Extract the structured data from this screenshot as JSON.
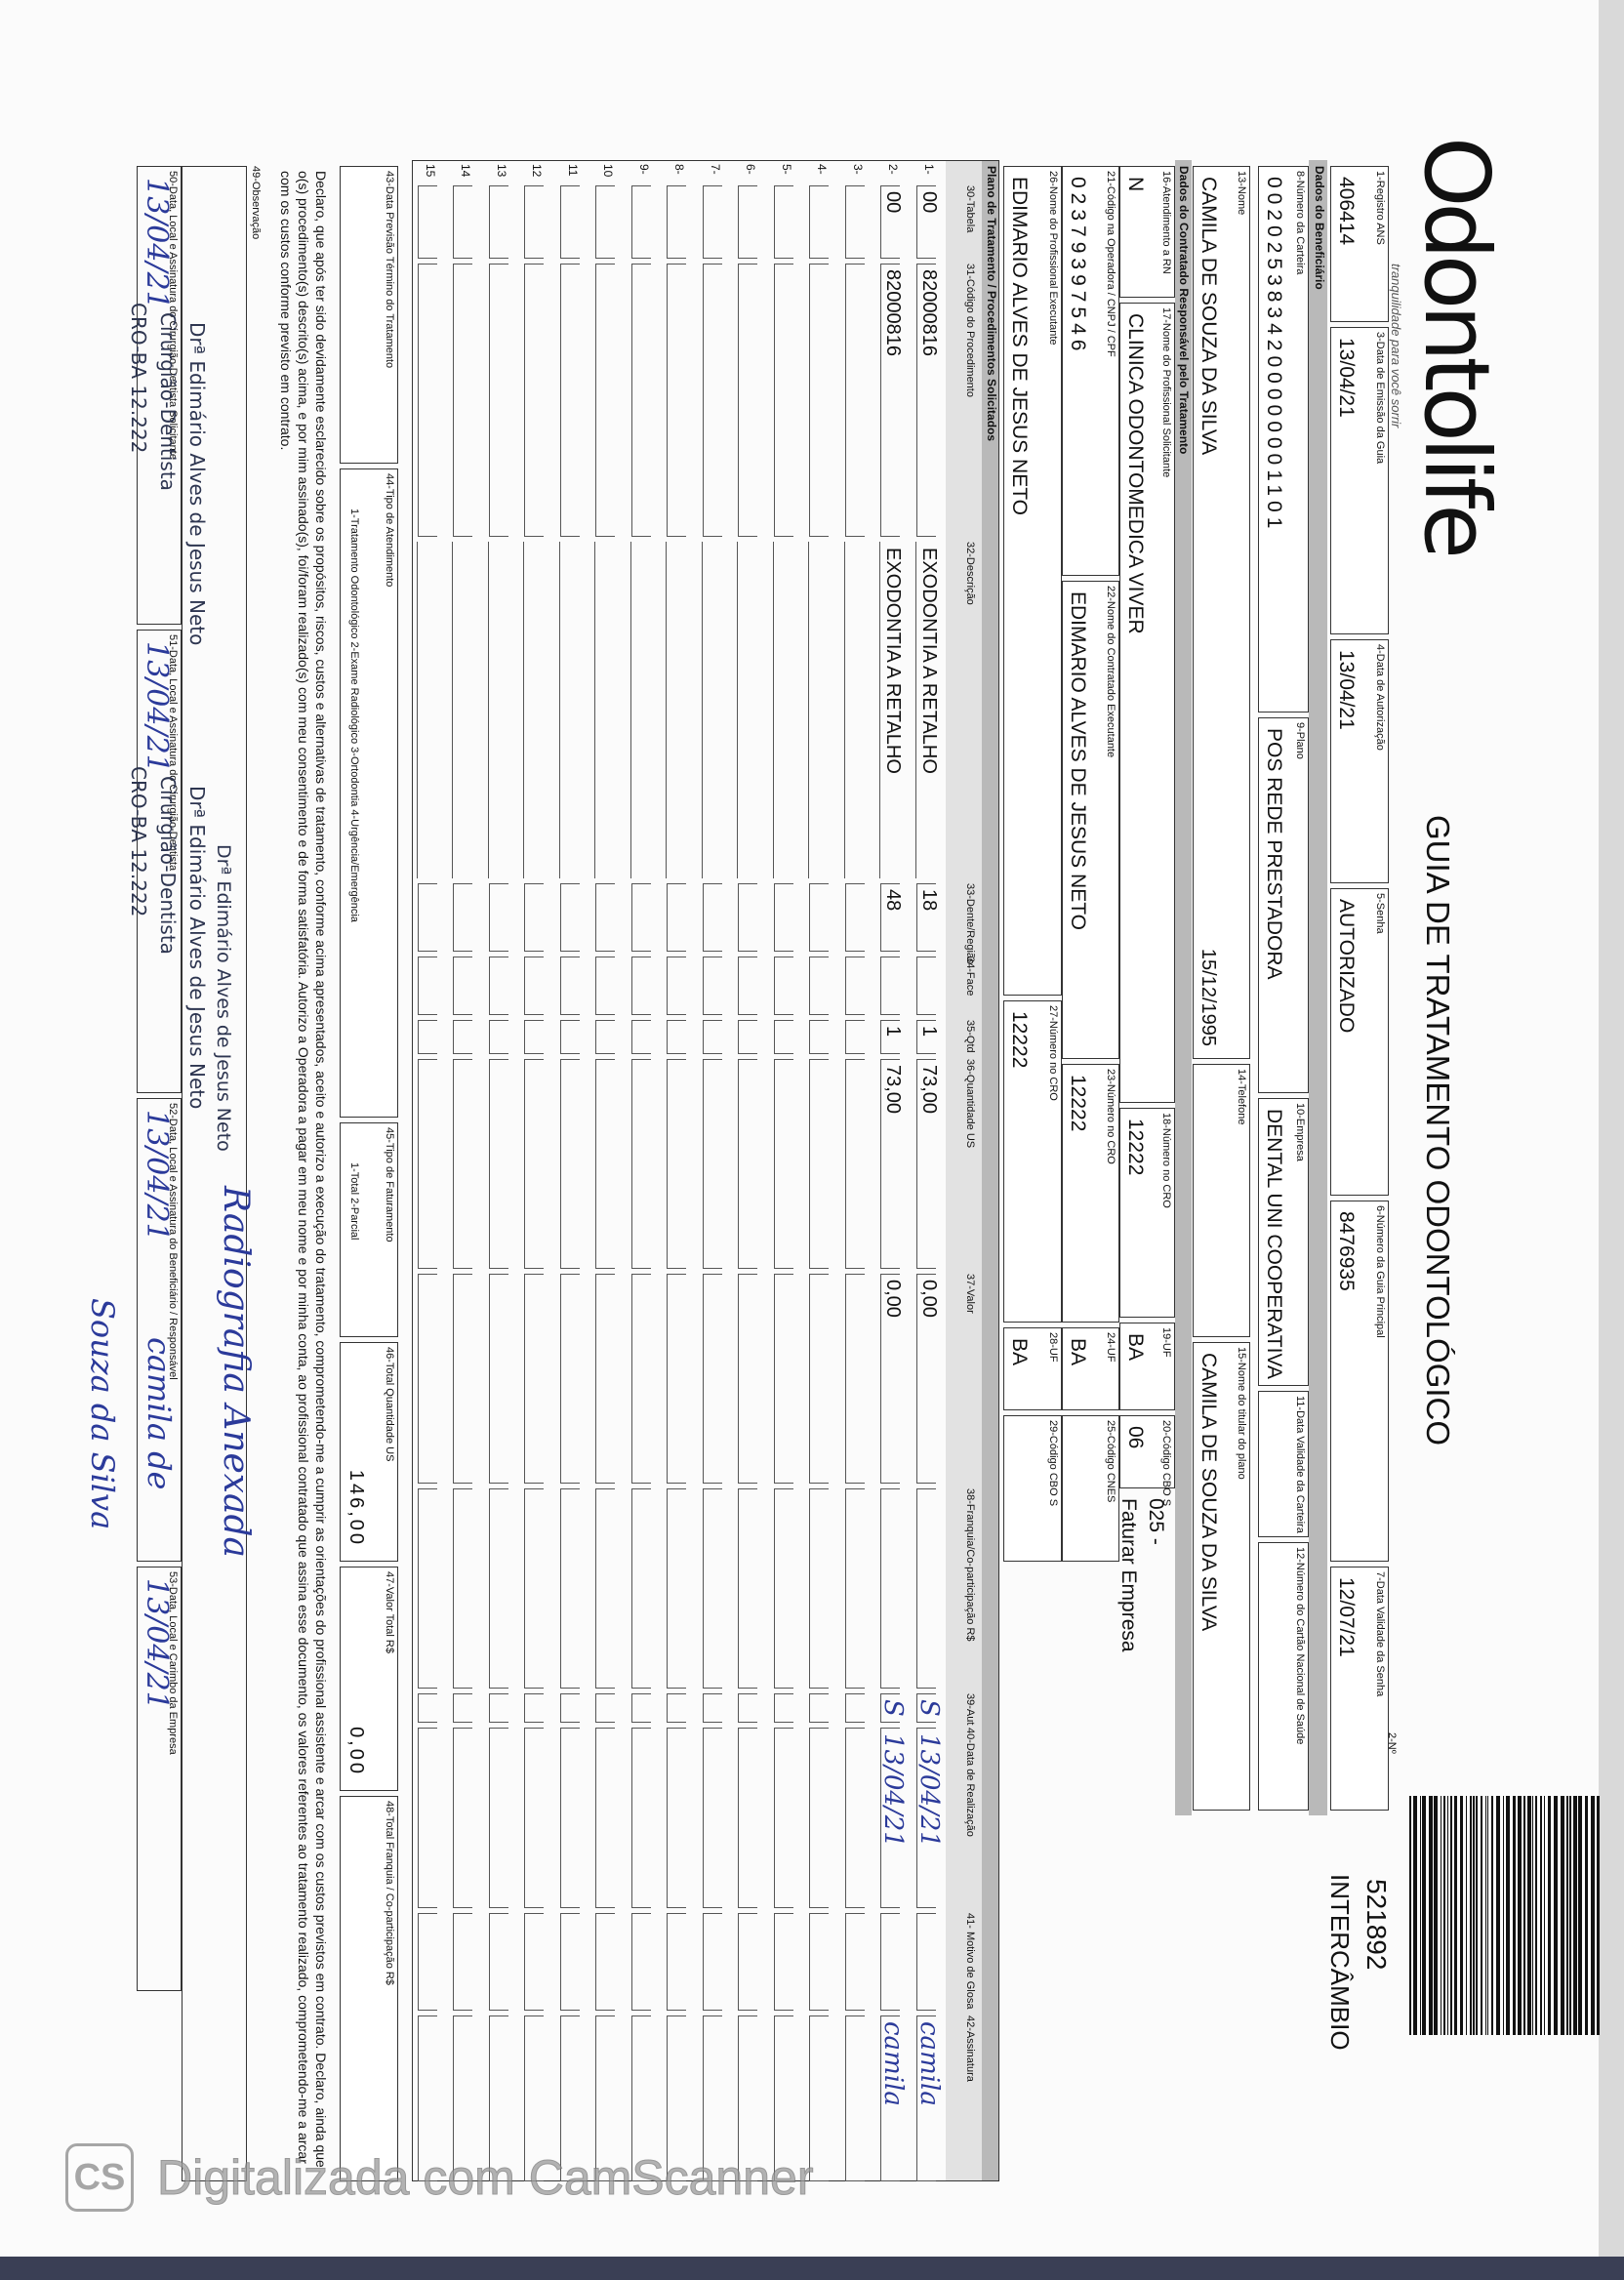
{
  "header": {
    "brand": "Odontolife",
    "tagline": "tranquilidade para você sorrir",
    "title": "GUIA DE TRATAMENTO ODONTOLÓGICO",
    "number_label": "2-Nº",
    "number": "521892",
    "exchange": "INTERCÂMBIO"
  },
  "sections": {
    "beneficiary": "Dados do Beneficiário",
    "contractor": "Dados do Contratado Responsável pelo Tratamento",
    "plan": "Plano de Tratamento / Procedimentos Solicitados"
  },
  "fields": [
    {
      "label": "1-Registro ANS",
      "value": "406414"
    },
    {
      "label": "3-Data de Emissão da Guia",
      "value": "13/04/21"
    },
    {
      "label": "4-Data de Autorização",
      "value": "13/04/21"
    },
    {
      "label": "5-Senha",
      "value": "AUTORIZADO"
    },
    {
      "label": "6-Número da Guia Principal",
      "value": "8476935"
    },
    {
      "label": "7-Data Validade da Senha",
      "value": "12/07/21"
    },
    {
      "label": "8-Número da Carteira",
      "value": "0020253834200000001101"
    },
    {
      "label": "9-Plano",
      "value": "POS REDE PRESTADORA"
    },
    {
      "label": "10-Empresa",
      "value": "DENTAL UNI  COOPERATIVA"
    },
    {
      "label": "11-Data Validade da Carteira"
    },
    {
      "label": "12-Número do Cartão Nacional de Saúde"
    },
    {
      "label": "13-Nome",
      "value": "CAMILA DE SOUZA DA SILVA",
      "extra": "15/12/1995"
    },
    {
      "label": "14-Telefone"
    },
    {
      "label": "15-Nome do titular do plano",
      "value": "CAMILA DE SOUZA DA SILVA"
    },
    {
      "label": "16-Atendimento a RN",
      "value": "N"
    },
    {
      "label": "17-Nome do Profissional Solicitante",
      "value": "CLINICA ODONTOMEDICA VIVER"
    },
    {
      "label": "18-Número no CRO",
      "value": "12222"
    },
    {
      "label": "19-UF",
      "value": "BA"
    },
    {
      "label": "20-Código CBO S",
      "value": "06"
    },
    {
      "label": "21-Código na Operadora / CNPJ / CPF",
      "value": "02379397546"
    },
    {
      "label": "22-Nome do Contratado Executante",
      "value": "EDIMARIO ALVES DE JESUS NETO"
    },
    {
      "label": "23-Número no CRO",
      "value": "12222"
    },
    {
      "label": "24-UF",
      "value": "BA"
    },
    {
      "label": "25-Código CNES"
    },
    {
      "label": "26-Nome do Profissional Executante",
      "value": "EDIMARIO ALVES DE JESUS NETO"
    },
    {
      "label": "27-Número no CRO",
      "value": "12222"
    },
    {
      "label": "28-UF",
      "value": "BA"
    },
    {
      "label": "29-Código CBO S"
    }
  ],
  "billing_note": [
    "025 -",
    "Faturar Empresa"
  ],
  "table": {
    "headers": [
      "30-Tabela",
      "31-Código do Procedimento",
      "32-Descrição",
      "33-Dente/Região",
      "34-Face",
      "35-Qtd",
      "36-Quantidade US",
      "37-Valor",
      "38-Franquia/Co-participação R$",
      "39-Aut",
      "40-Data de Realização",
      "41- Motivo de Glosa",
      "42-Assinatura"
    ],
    "row_labels": [
      "1-",
      "2-",
      "3-",
      "4-",
      "5-",
      "6-",
      "7-",
      "8-",
      "9-",
      "10",
      "11",
      "12",
      "13",
      "14",
      "15"
    ],
    "rows": [
      {
        "table": "00",
        "code": "82000816",
        "description": "EXODONTIA A RETALHO",
        "tooth": "18",
        "qty": "1",
        "qty_us": "73,00",
        "value": "0,00",
        "aut": "S",
        "date": "13/04/21",
        "signature": "camila"
      },
      {
        "table": "00",
        "code": "82000816",
        "description": "EXODONTIA A RETALHO",
        "tooth": "48",
        "qty": "1",
        "qty_us": "73,00",
        "value": "0,00",
        "aut": "S",
        "date": "13/04/21",
        "signature": "camila"
      }
    ]
  },
  "totals": [
    {
      "label": "43-Data Previsão Término do Tratamento"
    },
    {
      "label": "44-Tipo de Atendimento",
      "options": "1-Tratamento Odontológico  2-Exame Radiológico  3-Ortodontia  4-Urgência/Emergência"
    },
    {
      "label": "45-Tipo de Faturamento",
      "options": "1-Total  2-Parcial"
    },
    {
      "label": "46-Total Quantidade US",
      "value": "146,00"
    },
    {
      "label": "47-Valor Total R$",
      "value": "0,00"
    },
    {
      "label": "48-Total Franquia / Co-participação R$"
    }
  ],
  "declaration": "Declaro, que após ter sido devidamente esclarecido sobre os propósitos, riscos, custos e alternativas de tratamento, conforme acima apresentados, aceito e autorizo a execução do tratamento, comprometendo-me a cumprir as orientações do profissional assistente e arcar com os custos previstos em contrato. Declaro, ainda que o(s) procedimento(s) descrito(s) acima, e por mim assinado(s), foi/foram realizado(s) com meu consentimento e de forma satisfatória. Autorizo a Operadora a pagar em meu nome e por minha conta, ao profissional contratado que assina esse documento, os valores referentes ao tratamento realizado, comprometendo-me a arcar com os custos conforme previsto em contrato.",
  "observation": {
    "label": "49-Observação",
    "stamp": "Drª Edimário Alves de Jesus Neto",
    "note": "Radiografia Anexada"
  },
  "signatures": [
    {
      "label": "50-Data, Local e Assinatura do Cirurgião-Dentista Solicitante",
      "date": "13/04/21",
      "stamp": [
        "Drª Edimário Alves de Jesus Neto",
        "Cirurgião-Dentista",
        "CRO-BA 12.222"
      ]
    },
    {
      "label": "51-Data, Local e Assinatura do Cirurgião-Dentista",
      "date": "13/04/21",
      "stamp": [
        "Drª Edimário Alves de Jesus Neto",
        "Cirurgião-Dentista",
        "CRO-BA 12.222"
      ]
    },
    {
      "label": "52-Data, Local e Assinatura do Beneficiário / Responsável",
      "date": "13/04/21"
    },
    {
      "label": "53-Data, Local e Carimbo da Empresa",
      "date": "13/04/21"
    }
  ],
  "beneficiary_signature": [
    "camila de",
    "Souza da Silva"
  ],
  "watermark": {
    "icon": "CS",
    "text": "Digitalizada com CamScanner"
  }
}
